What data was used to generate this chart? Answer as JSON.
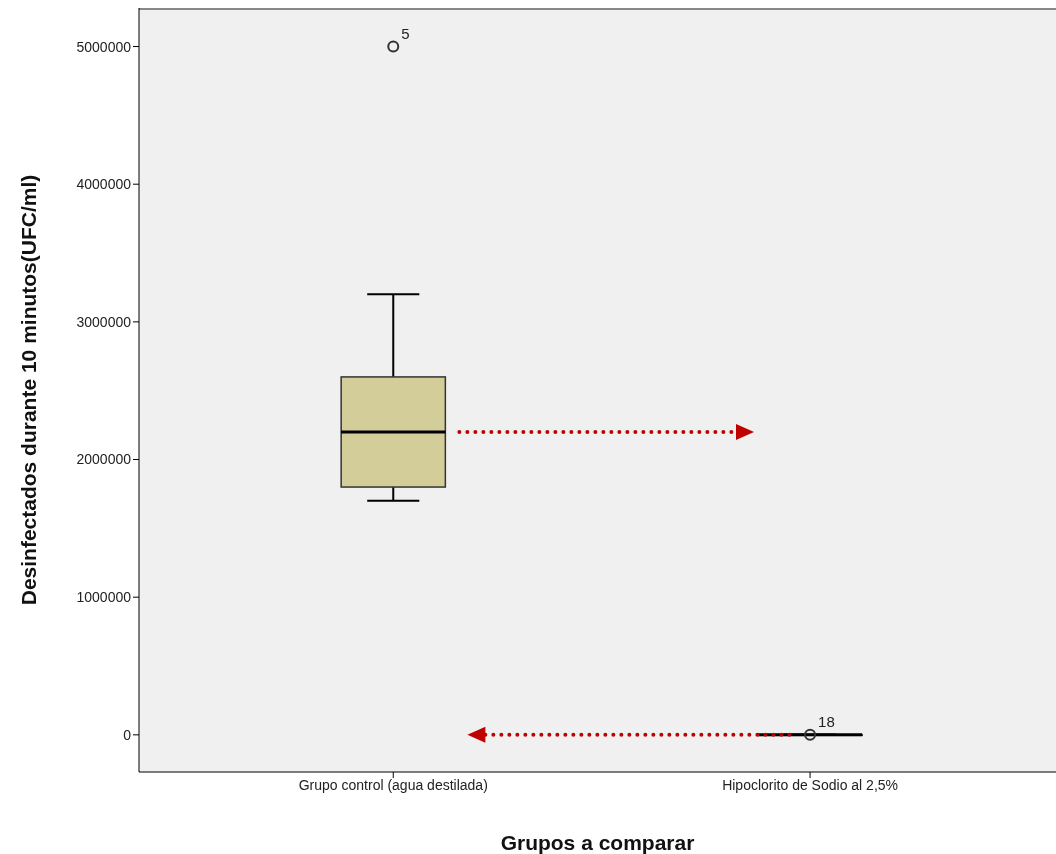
{
  "chart_data": {
    "type": "box",
    "xlabel": "Grupos a comparar",
    "ylabel": "Desinfectados durante 10 minutos(UFC/ml)",
    "categories": [
      "Grupo control (agua destilada)",
      "Hipoclorito de Sodio al 2,5%"
    ],
    "boxes": [
      {
        "low": 1700000,
        "q1": 1800000,
        "median": 2200000,
        "q3": 2600000,
        "high": 3200000,
        "outliers": [
          5000000
        ]
      },
      {
        "low": 0,
        "q1": 0,
        "median": 0,
        "q3": 0,
        "high": 0,
        "outliers": [
          0
        ]
      }
    ],
    "color": "#d3cd99",
    "ylim": [
      -270000,
      5280000
    ],
    "yticks": [
      0,
      1000000,
      2000000,
      3000000,
      4000000,
      5000000
    ],
    "annotations": [
      "5",
      "18"
    ]
  }
}
